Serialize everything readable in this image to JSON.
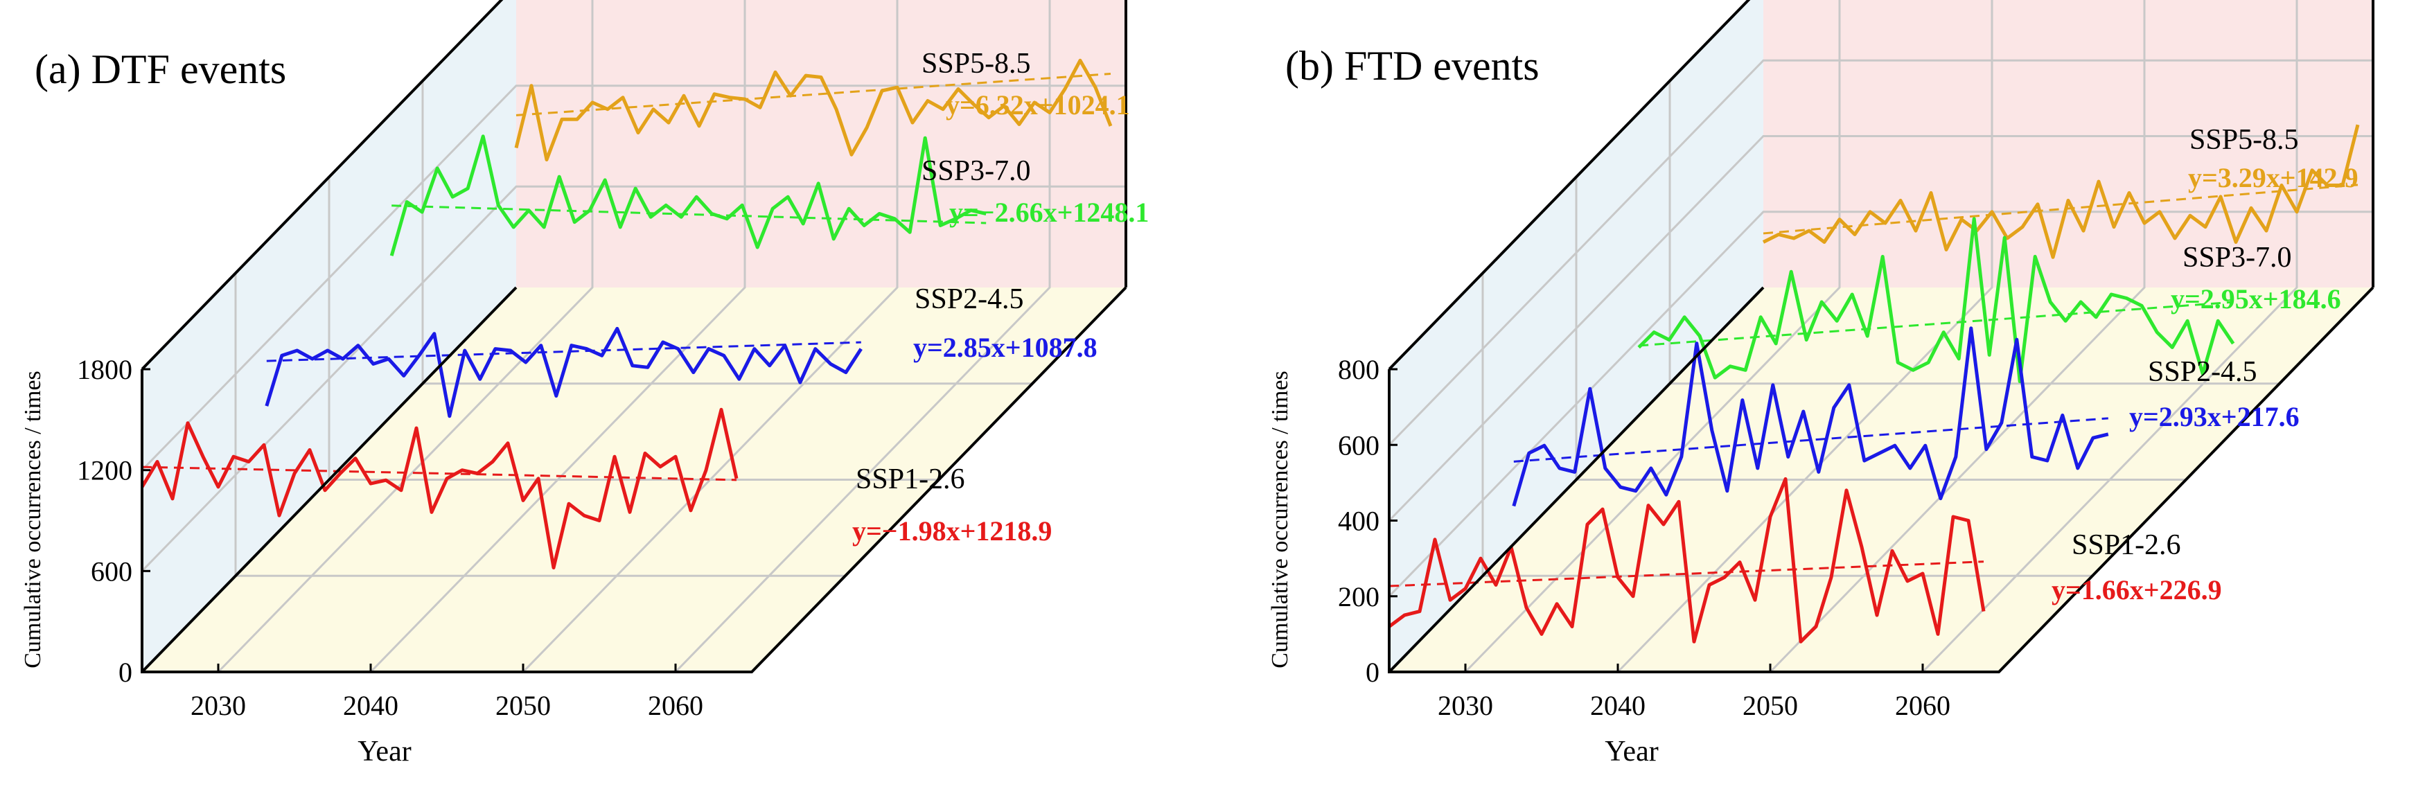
{
  "colors": {
    "ssp585": "#E3A21A",
    "ssp370": "#2EE82E",
    "ssp245": "#1A1AE6",
    "ssp126": "#E61A1A",
    "back_wall": "#FBE6E6",
    "side_wall": "#EAF3F8",
    "floor": "#FDFAE3",
    "grid": "#C8C8C8",
    "axis": "#000000"
  },
  "chart_data": [
    {
      "type": "line",
      "panel": "(a)",
      "title": "(a) DTF events",
      "xlabel": "Year",
      "ylabel": "Cumulative occurrences / times",
      "xlim": [
        2025,
        2065
      ],
      "ylim": [
        0,
        1800
      ],
      "x_ticks": [
        2030,
        2040,
        2050,
        2060
      ],
      "y_ticks": [
        0,
        600,
        1200,
        1800
      ],
      "x_tick_labels": [
        "2030",
        "2040",
        "2050",
        "2060"
      ],
      "y_tick_labels": [
        "0",
        "600",
        "1200",
        "1800"
      ],
      "series": [
        {
          "name": "SSP1-2.6",
          "key": "ssp126",
          "equation": "y=−1.98x+1218.9",
          "x": [
            2025,
            2026,
            2027,
            2028,
            2029,
            2030,
            2031,
            2032,
            2033,
            2034,
            2035,
            2036,
            2037,
            2038,
            2039,
            2040,
            2041,
            2042,
            2043,
            2044,
            2045,
            2046,
            2047,
            2048,
            2049,
            2050,
            2051,
            2052,
            2053,
            2054,
            2055,
            2056,
            2057,
            2058,
            2059,
            2060,
            2061,
            2062,
            2063,
            2064
          ],
          "values": [
            1100,
            1250,
            1030,
            1480,
            1280,
            1100,
            1280,
            1250,
            1350,
            930,
            1180,
            1320,
            1080,
            1180,
            1270,
            1120,
            1140,
            1080,
            1450,
            950,
            1150,
            1200,
            1180,
            1250,
            1360,
            1020,
            1150,
            620,
            1000,
            930,
            900,
            1280,
            950,
            1300,
            1220,
            1280,
            960,
            1200,
            1560,
            1150
          ],
          "trend": [
            1218.9,
            1141.7
          ]
        },
        {
          "name": "SSP2-4.5",
          "key": "ssp245",
          "equation": "y=2.85x+1087.8",
          "x": [
            2025,
            2026,
            2027,
            2028,
            2029,
            2030,
            2031,
            2032,
            2033,
            2034,
            2035,
            2036,
            2037,
            2038,
            2039,
            2040,
            2041,
            2042,
            2043,
            2044,
            2045,
            2046,
            2047,
            2048,
            2049,
            2050,
            2051,
            2052,
            2053,
            2054,
            2055,
            2056,
            2057,
            2058,
            2059,
            2060,
            2061,
            2062,
            2063,
            2064
          ],
          "values": [
            820,
            1120,
            1150,
            1100,
            1150,
            1100,
            1180,
            1070,
            1100,
            1000,
            1120,
            1250,
            760,
            1150,
            980,
            1160,
            1150,
            1080,
            1180,
            880,
            1180,
            1160,
            1120,
            1280,
            1060,
            1050,
            1200,
            1160,
            1020,
            1160,
            1120,
            980,
            1160,
            1060,
            1180,
            960,
            1160,
            1070,
            1020,
            1160
          ],
          "trend": [
            1087.8,
            1198.9
          ]
        },
        {
          "name": "SSP3-7.0",
          "key": "ssp370",
          "equation": "y=−2.66x+1248.1",
          "x": [
            2025,
            2026,
            2027,
            2028,
            2029,
            2030,
            2031,
            2032,
            2033,
            2034,
            2035,
            2036,
            2037,
            2038,
            2039,
            2040,
            2041,
            2042,
            2043,
            2044,
            2045,
            2046,
            2047,
            2048,
            2049,
            2050,
            2051,
            2052,
            2053,
            2054,
            2055,
            2056,
            2057,
            2058,
            2059,
            2060,
            2061,
            2062,
            2063,
            2064
          ],
          "values": [
            950,
            1270,
            1210,
            1470,
            1300,
            1350,
            1660,
            1250,
            1120,
            1220,
            1120,
            1420,
            1150,
            1220,
            1400,
            1120,
            1350,
            1180,
            1250,
            1180,
            1300,
            1200,
            1170,
            1250,
            1000,
            1230,
            1300,
            1140,
            1380,
            1050,
            1230,
            1130,
            1200,
            1170,
            1090,
            1650,
            1130,
            1170,
            1220,
            1200
          ],
          "trend": [
            1248.1,
            1144.4
          ]
        },
        {
          "name": "SSP5-8.5",
          "key": "ssp585",
          "equation": "y=6.32x+1024.1",
          "x": [
            2025,
            2026,
            2027,
            2028,
            2029,
            2030,
            2031,
            2032,
            2033,
            2034,
            2035,
            2036,
            2037,
            2038,
            2039,
            2040,
            2041,
            2042,
            2043,
            2044,
            2045,
            2046,
            2047,
            2048,
            2049,
            2050,
            2051,
            2052,
            2053,
            2054,
            2055,
            2056,
            2057,
            2058,
            2059,
            2060,
            2061,
            2062,
            2063,
            2064
          ],
          "values": [
            830,
            1200,
            760,
            1000,
            1000,
            1100,
            1060,
            1130,
            920,
            1060,
            980,
            1140,
            960,
            1150,
            1130,
            1120,
            1070,
            1280,
            1140,
            1260,
            1250,
            1060,
            790,
            950,
            1170,
            1190,
            980,
            1110,
            1060,
            1180,
            1090,
            1010,
            1080,
            970,
            1100,
            1040,
            1180,
            1350,
            1190,
            960
          ],
          "trend": [
            1024.1,
            1270.6
          ]
        }
      ]
    },
    {
      "type": "line",
      "panel": "(b)",
      "title": "(b) FTD events",
      "xlabel": "Year",
      "ylabel": "Cumulative occurrences / times",
      "xlim": [
        2025,
        2065
      ],
      "ylim": [
        0,
        800
      ],
      "x_ticks": [
        2030,
        2040,
        2050,
        2060
      ],
      "y_ticks": [
        0,
        200,
        400,
        600,
        800
      ],
      "x_tick_labels": [
        "2030",
        "2040",
        "2050",
        "2060"
      ],
      "y_tick_labels": [
        "0",
        "200",
        "400",
        "600",
        "800"
      ],
      "series": [
        {
          "name": "SSP1-2.6",
          "key": "ssp126",
          "equation": "y=1.66x+226.9",
          "x": [
            2025,
            2026,
            2027,
            2028,
            2029,
            2030,
            2031,
            2032,
            2033,
            2034,
            2035,
            2036,
            2037,
            2038,
            2039,
            2040,
            2041,
            2042,
            2043,
            2044,
            2045,
            2046,
            2047,
            2048,
            2049,
            2050,
            2051,
            2052,
            2053,
            2054,
            2055,
            2056,
            2057,
            2058,
            2059,
            2060,
            2061,
            2062,
            2063,
            2064
          ],
          "values": [
            120,
            150,
            160,
            350,
            190,
            220,
            300,
            230,
            330,
            170,
            100,
            180,
            120,
            390,
            430,
            250,
            200,
            440,
            390,
            450,
            80,
            230,
            250,
            290,
            190,
            410,
            510,
            80,
            120,
            250,
            480,
            330,
            150,
            320,
            240,
            260,
            100,
            410,
            400,
            160
          ],
          "trend": [
            226.9,
            291.6
          ]
        },
        {
          "name": "SSP2-4.5",
          "key": "ssp245",
          "equation": "y=2.93x+217.6",
          "x": [
            2025,
            2026,
            2027,
            2028,
            2029,
            2030,
            2031,
            2032,
            2033,
            2034,
            2035,
            2036,
            2037,
            2038,
            2039,
            2040,
            2041,
            2042,
            2043,
            2044,
            2045,
            2046,
            2047,
            2048,
            2049,
            2050,
            2051,
            2052,
            2053,
            2054,
            2055,
            2056,
            2057,
            2058,
            2059,
            2060,
            2061,
            2062,
            2063,
            2064
          ],
          "values": [
            100,
            240,
            260,
            200,
            190,
            410,
            200,
            150,
            140,
            200,
            130,
            230,
            530,
            300,
            140,
            380,
            200,
            420,
            230,
            350,
            190,
            360,
            420,
            220,
            240,
            260,
            200,
            260,
            120,
            230,
            570,
            250,
            320,
            540,
            230,
            220,
            340,
            200,
            280,
            290
          ],
          "trend": [
            217.6,
            331.9
          ]
        },
        {
          "name": "SSP3-7.0",
          "key": "ssp370",
          "equation": "y=2.95x+184.6",
          "x": [
            2025,
            2026,
            2027,
            2028,
            2029,
            2030,
            2031,
            2032,
            2033,
            2034,
            2035,
            2036,
            2037,
            2038,
            2039,
            2040,
            2041,
            2042,
            2043,
            2044,
            2045,
            2046,
            2047,
            2048,
            2049,
            2050,
            2051,
            2052,
            2053,
            2054,
            2055,
            2056,
            2057,
            2058,
            2059,
            2060,
            2061,
            2062,
            2063,
            2064
          ],
          "values": [
            180,
            220,
            200,
            260,
            210,
            100,
            130,
            120,
            260,
            190,
            380,
            200,
            300,
            250,
            320,
            210,
            420,
            140,
            120,
            140,
            220,
            150,
            520,
            160,
            470,
            90,
            420,
            300,
            250,
            300,
            260,
            320,
            310,
            290,
            220,
            180,
            250,
            110,
            250,
            190
          ],
          "trend": [
            184.6,
            299.7
          ]
        },
        {
          "name": "SSP5-8.5",
          "key": "ssp585",
          "equation": "y=3.29x+142.9",
          "x": [
            2025,
            2026,
            2027,
            2028,
            2029,
            2030,
            2031,
            2032,
            2033,
            2034,
            2035,
            2036,
            2037,
            2038,
            2039,
            2040,
            2041,
            2042,
            2043,
            2044,
            2045,
            2046,
            2047,
            2048,
            2049,
            2050,
            2051,
            2052,
            2053,
            2054,
            2055,
            2056,
            2057,
            2058,
            2059,
            2060,
            2061,
            2062,
            2063,
            2064
          ],
          "values": [
            120,
            140,
            130,
            150,
            120,
            180,
            140,
            200,
            170,
            230,
            150,
            250,
            100,
            180,
            150,
            200,
            130,
            160,
            220,
            80,
            230,
            150,
            280,
            160,
            250,
            170,
            200,
            130,
            190,
            160,
            240,
            120,
            210,
            150,
            270,
            200,
            310,
            270,
            270,
            430
          ],
          "trend": [
            142.9,
            271.2
          ]
        }
      ]
    }
  ]
}
